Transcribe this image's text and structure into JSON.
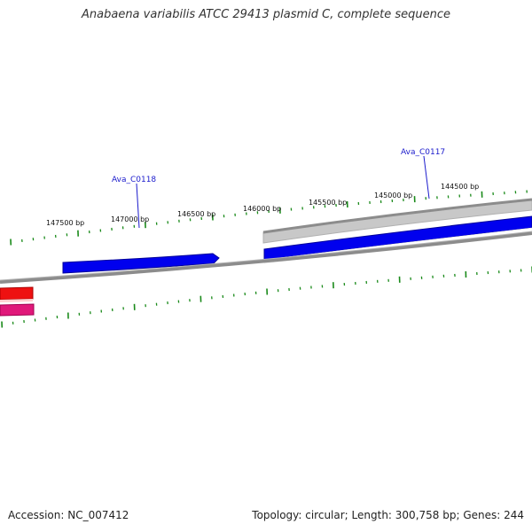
{
  "title": "Anabaena variabilis ATCC 29413 plasmid C, complete sequence",
  "footer": {
    "accession": "Accession: NC_007412",
    "summary": "Topology: circular; Length: 300,758 bp; Genes: 244"
  },
  "colors": {
    "backbone": "#8c8c8c",
    "forward_gene": "#0000ee",
    "gene_shadow": "#c8c8c8",
    "red_feature": "#ee1111",
    "pink_feature": "#e0187a",
    "tick": "#1a8a1a",
    "label": "#1a1acc"
  },
  "ticks": [
    {
      "label": "147500 bp"
    },
    {
      "label": "147000 bp"
    },
    {
      "label": "146500 bp"
    },
    {
      "label": "146000 bp"
    },
    {
      "label": "145500 bp"
    },
    {
      "label": "145000 bp"
    },
    {
      "label": "144500 bp"
    }
  ],
  "gene_labels": [
    {
      "id": "Ava_C0118"
    },
    {
      "id": "Ava_C0117"
    }
  ]
}
